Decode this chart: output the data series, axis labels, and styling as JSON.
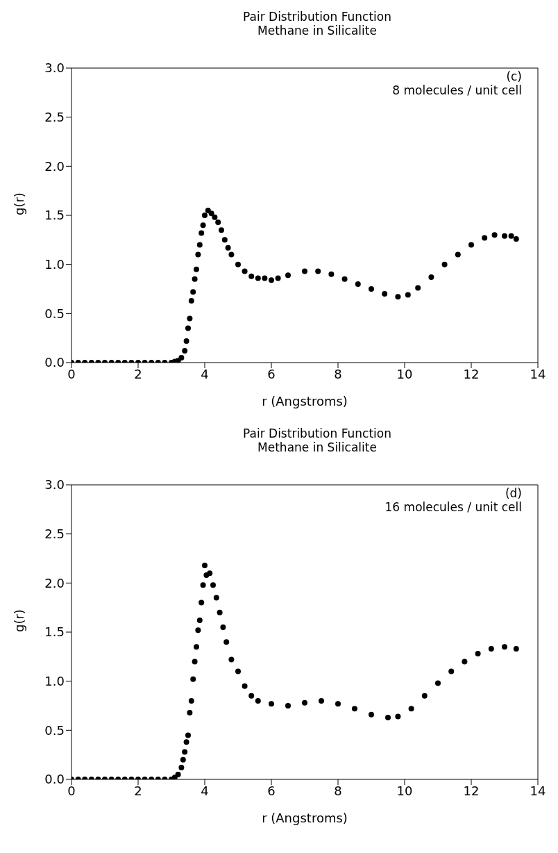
{
  "chart_data": [
    {
      "type": "scatter",
      "title": "Pair Distribution Function",
      "subtitle": "Methane in Silicalite",
      "xlabel": "r (Angstroms)",
      "ylabel": "g(r)",
      "annotations": [
        "(c)",
        "8 molecules / unit cell"
      ],
      "marker": "circle",
      "grid": false,
      "color": "#000000",
      "x": [
        0,
        0.2,
        0.4,
        0.6,
        0.8,
        1.0,
        1.2,
        1.4,
        1.6,
        1.8,
        2.0,
        2.2,
        2.4,
        2.6,
        2.8,
        3.0,
        3.1,
        3.2,
        3.3,
        3.4,
        3.45,
        3.5,
        3.55,
        3.6,
        3.65,
        3.7,
        3.75,
        3.8,
        3.85,
        3.9,
        3.95,
        4.0,
        4.1,
        4.2,
        4.3,
        4.4,
        4.5,
        4.6,
        4.7,
        4.8,
        5.0,
        5.2,
        5.4,
        5.6,
        5.8,
        6.0,
        6.2,
        6.5,
        7.0,
        7.4,
        7.8,
        8.2,
        8.6,
        9.0,
        9.4,
        9.8,
        10.1,
        10.4,
        10.8,
        11.2,
        11.6,
        12.0,
        12.4,
        12.7,
        13.0,
        13.2,
        13.35
      ],
      "values": [
        0,
        0,
        0,
        0,
        0,
        0,
        0,
        0,
        0,
        0,
        0,
        0,
        0,
        0,
        0,
        0,
        0.01,
        0.02,
        0.05,
        0.12,
        0.22,
        0.35,
        0.45,
        0.63,
        0.72,
        0.85,
        0.95,
        1.1,
        1.2,
        1.32,
        1.4,
        1.5,
        1.55,
        1.52,
        1.48,
        1.43,
        1.35,
        1.25,
        1.17,
        1.1,
        1.0,
        0.93,
        0.88,
        0.86,
        0.86,
        0.84,
        0.86,
        0.89,
        0.93,
        0.93,
        0.9,
        0.85,
        0.8,
        0.75,
        0.7,
        0.67,
        0.69,
        0.76,
        0.87,
        1.0,
        1.1,
        1.2,
        1.27,
        1.3,
        1.29,
        1.29,
        1.26
      ],
      "xlim": [
        0,
        14
      ],
      "xticks": [
        0,
        2,
        4,
        6,
        8,
        10,
        12,
        14
      ],
      "ylim": [
        0,
        3
      ],
      "yticks": [
        {
          "value": 0,
          "label": "0.0"
        },
        {
          "value": 0.5,
          "label": "0.5"
        },
        {
          "value": 1,
          "label": "1.0"
        },
        {
          "value": 1.5,
          "label": "1.5"
        },
        {
          "value": 2,
          "label": "2.0"
        },
        {
          "value": 2.5,
          "label": "2.5"
        },
        {
          "value": 3,
          "label": "3.0"
        }
      ]
    },
    {
      "type": "scatter",
      "title": "Pair Distribution Function",
      "subtitle": "Methane in Silicalite",
      "xlabel": "r (Angstroms)",
      "ylabel": "g(r)",
      "annotations": [
        "(d)",
        "16 molecules / unit cell"
      ],
      "marker": "circle",
      "grid": false,
      "color": "#000000",
      "x": [
        0,
        0.2,
        0.4,
        0.6,
        0.8,
        1.0,
        1.2,
        1.4,
        1.6,
        1.8,
        2.0,
        2.2,
        2.4,
        2.6,
        2.8,
        3.0,
        3.1,
        3.2,
        3.3,
        3.35,
        3.4,
        3.45,
        3.5,
        3.55,
        3.6,
        3.65,
        3.7,
        3.75,
        3.8,
        3.85,
        3.9,
        3.95,
        4.0,
        4.05,
        4.15,
        4.25,
        4.35,
        4.45,
        4.55,
        4.65,
        4.8,
        5.0,
        5.2,
        5.4,
        5.6,
        6.0,
        6.5,
        7.0,
        7.5,
        8.0,
        8.5,
        9.0,
        9.5,
        9.8,
        10.2,
        10.6,
        11.0,
        11.4,
        11.8,
        12.2,
        12.6,
        13.0,
        13.35
      ],
      "values": [
        0,
        0,
        0,
        0,
        0,
        0,
        0,
        0,
        0,
        0,
        0,
        0,
        0,
        0,
        0,
        0,
        0.02,
        0.05,
        0.12,
        0.2,
        0.28,
        0.38,
        0.45,
        0.68,
        0.8,
        1.02,
        1.2,
        1.35,
        1.52,
        1.62,
        1.8,
        1.98,
        2.18,
        2.08,
        2.1,
        1.98,
        1.85,
        1.7,
        1.55,
        1.4,
        1.22,
        1.1,
        0.95,
        0.85,
        0.8,
        0.77,
        0.75,
        0.78,
        0.8,
        0.77,
        0.72,
        0.66,
        0.63,
        0.64,
        0.72,
        0.85,
        0.98,
        1.1,
        1.2,
        1.28,
        1.33,
        1.35,
        1.33
      ],
      "xlim": [
        0,
        14
      ],
      "xticks": [
        0,
        2,
        4,
        6,
        8,
        10,
        12,
        14
      ],
      "ylim": [
        0,
        3
      ],
      "yticks": [
        {
          "value": 0,
          "label": "0.0"
        },
        {
          "value": 0.5,
          "label": "0.5"
        },
        {
          "value": 1,
          "label": "1.0"
        },
        {
          "value": 1.5,
          "label": "1.5"
        },
        {
          "value": 2,
          "label": "2.0"
        },
        {
          "value": 2.5,
          "label": "2.5"
        },
        {
          "value": 3,
          "label": "3.0"
        }
      ]
    }
  ]
}
